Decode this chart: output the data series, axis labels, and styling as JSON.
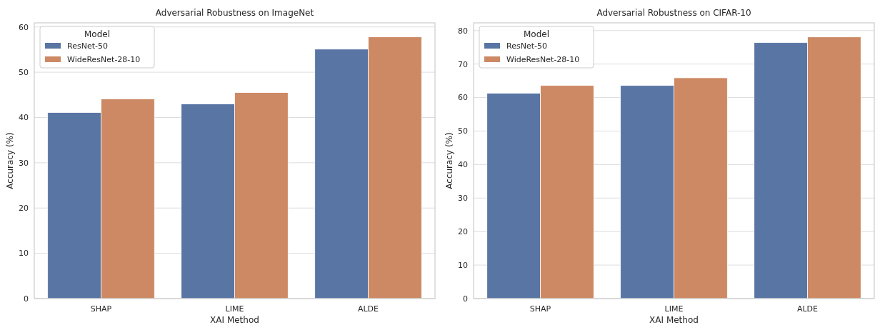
{
  "chart_data": [
    {
      "type": "bar",
      "title": "Adversarial Robustness on ImageNet",
      "xlabel": "XAI Method",
      "ylabel": "Accuracy (%)",
      "legend_title": "Model",
      "categories": [
        "SHAP",
        "LIME",
        "ALDE"
      ],
      "series": [
        {
          "name": "ResNet-50",
          "color": "#5975a4",
          "values": [
            41.1,
            43.0,
            55.1
          ]
        },
        {
          "name": "WideResNet-28-10",
          "color": "#cc8963",
          "values": [
            44.1,
            45.5,
            57.8
          ]
        }
      ],
      "ylim": [
        0,
        60.9
      ],
      "yticks": [
        0,
        10,
        20,
        30,
        40,
        50,
        60
      ],
      "grid": "y",
      "legend": "top left"
    },
    {
      "type": "bar",
      "title": "Adversarial Robustness on CIFAR-10",
      "xlabel": "XAI Method",
      "ylabel": "Accuracy (%)",
      "legend_title": "Model",
      "categories": [
        "SHAP",
        "LIME",
        "ALDE"
      ],
      "series": [
        {
          "name": "ResNet-50",
          "color": "#5975a4",
          "values": [
            61.3,
            63.6,
            76.4
          ]
        },
        {
          "name": "WideResNet-28-10",
          "color": "#cc8963",
          "values": [
            63.6,
            65.9,
            78.1
          ]
        }
      ],
      "ylim": [
        0,
        82.3
      ],
      "yticks": [
        0,
        10,
        20,
        30,
        40,
        50,
        60,
        70,
        80
      ],
      "grid": "y",
      "legend": "top left"
    }
  ]
}
